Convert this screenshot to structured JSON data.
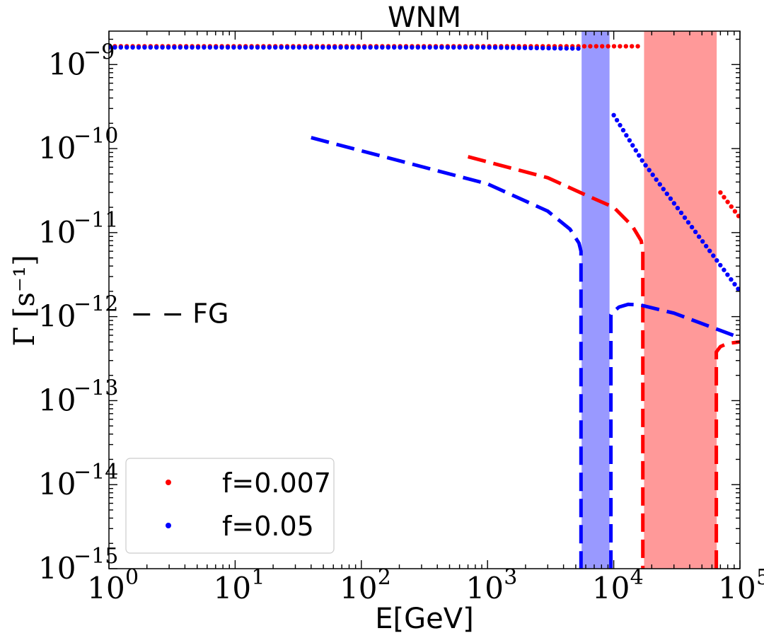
{
  "chart_data": {
    "type": "line",
    "title": "WNM",
    "xlabel": "E[GeV]",
    "ylabel": "Γ [s⁻¹]",
    "xscale": "log",
    "yscale": "log",
    "xlim": [
      1,
      100000
    ],
    "ylim": [
      1e-15,
      2.5e-09
    ],
    "x_tick_labels": [
      {
        "value": 1,
        "base": "10",
        "exp": "0"
      },
      {
        "value": 10,
        "base": "10",
        "exp": "1"
      },
      {
        "value": 100,
        "base": "10",
        "exp": "2"
      },
      {
        "value": 1000,
        "base": "10",
        "exp": "3"
      },
      {
        "value": 10000,
        "base": "10",
        "exp": "4"
      },
      {
        "value": 100000,
        "base": "10",
        "exp": "5"
      }
    ],
    "y_tick_labels": [
      {
        "value": 1e-15,
        "base": "10",
        "exp": "−15"
      },
      {
        "value": 1e-14,
        "base": "10",
        "exp": "−14"
      },
      {
        "value": 1e-13,
        "base": "10",
        "exp": "−13"
      },
      {
        "value": 1e-12,
        "base": "10",
        "exp": "−12"
      },
      {
        "value": 1e-11,
        "base": "10",
        "exp": "−11"
      },
      {
        "value": 1e-10,
        "base": "10",
        "exp": "−10"
      },
      {
        "value": 1e-09,
        "base": "10",
        "exp": "−9"
      }
    ],
    "bands": [
      {
        "name": "blue-band",
        "x_range": [
          5600,
          9200
        ],
        "color": "#9999ff"
      },
      {
        "name": "red-band",
        "x_range": [
          17500,
          65000
        ],
        "color": "#ff9999"
      }
    ],
    "series": [
      {
        "name": "red-dotted",
        "style": "dotted",
        "color": "#ff0000",
        "points": [
          [
            1,
            1.65e-09
          ],
          [
            17000,
            1.65e-09
          ]
        ]
      },
      {
        "name": "blue-dotted",
        "style": "dotted",
        "color": "#0000ff",
        "points": [
          [
            1,
            1.6e-09
          ],
          [
            1000,
            1.6e-09
          ],
          [
            5500,
            1.55e-09
          ]
        ]
      },
      {
        "name": "blue-dotted-b",
        "style": "dotted",
        "color": "#0000ff",
        "points": [
          [
            10000,
            2.5e-10
          ],
          [
            17000,
            7e-11
          ],
          [
            100000,
            2e-12
          ]
        ]
      },
      {
        "name": "red-dotted-b",
        "style": "dotted",
        "color": "#ff0000",
        "points": [
          [
            70000,
            3e-11
          ],
          [
            100000,
            1.5e-11
          ]
        ]
      },
      {
        "name": "blue-dashed",
        "style": "dashed",
        "color": "#0000ff",
        "points": [
          [
            40,
            1.35e-10
          ],
          [
            1000,
            3.8e-11
          ],
          [
            3000,
            1.8e-11
          ],
          [
            4500,
            1.1e-11
          ],
          [
            5300,
            7.5e-12
          ],
          [
            5500,
            6e-12
          ],
          [
            5500,
            1e-15
          ]
        ]
      },
      {
        "name": "red-dashed",
        "style": "dashed",
        "color": "#ff0000",
        "points": [
          [
            700,
            8e-11
          ],
          [
            3000,
            4.5e-11
          ],
          [
            6000,
            2.8e-11
          ],
          [
            10000,
            2e-11
          ],
          [
            14000,
            1.2e-11
          ],
          [
            16500,
            8e-12
          ],
          [
            17000,
            6e-12
          ],
          [
            17000,
            1e-15
          ]
        ]
      },
      {
        "name": "blue-dashed-b",
        "style": "dashed",
        "color": "#0000ff",
        "points": [
          [
            9500,
            1e-15
          ],
          [
            9500,
            1.05e-12
          ],
          [
            10000,
            1.15e-12
          ],
          [
            11000,
            1.3e-12
          ],
          [
            13000,
            1.4e-12
          ],
          [
            16000,
            1.38e-12
          ],
          [
            30000,
            1.1e-12
          ],
          [
            100000,
            5.6e-13
          ]
        ]
      },
      {
        "name": "red-dashed-b",
        "style": "dashed",
        "color": "#ff0000",
        "points": [
          [
            65000,
            1e-15
          ],
          [
            65000,
            3.8e-13
          ],
          [
            70000,
            4.4e-13
          ],
          [
            80000,
            4.8e-13
          ],
          [
            100000,
            5e-13
          ]
        ]
      }
    ],
    "annotation": {
      "text": "− − FG",
      "x": 1.3,
      "y": 1.1e-12
    },
    "legend": {
      "position": "lower-left",
      "entries": [
        {
          "label": "f=0.007",
          "color": "#ff0000",
          "marker": "dot"
        },
        {
          "label": "f=0.05",
          "color": "#0000ff",
          "marker": "dot"
        }
      ]
    }
  }
}
